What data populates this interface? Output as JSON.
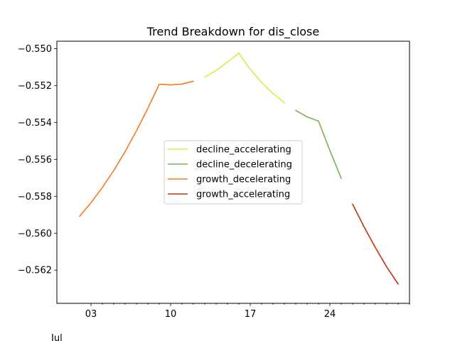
{
  "chart_data": {
    "type": "line",
    "title": "Trend Breakdown for dis_close",
    "xlabel": "",
    "ylabel": "",
    "x_offset_label": "Jul",
    "x_domain_days": [
      0,
      31
    ],
    "x_tick_labels": [
      {
        "day": 3,
        "label": "03"
      },
      {
        "day": 10,
        "label": "10"
      },
      {
        "day": 17,
        "label": "17"
      },
      {
        "day": 24,
        "label": "24"
      }
    ],
    "x_minor_ticks": [
      4,
      5,
      6,
      7,
      8,
      9,
      11,
      12,
      13,
      14,
      15,
      16,
      18,
      19,
      20,
      21,
      22,
      23,
      25,
      26,
      27,
      28,
      29,
      30,
      31
    ],
    "ylim": [
      -0.5638,
      -0.5496
    ],
    "y_ticks": [
      {
        "value": -0.55,
        "label": "−0.550"
      },
      {
        "value": -0.552,
        "label": "−0.552"
      },
      {
        "value": -0.554,
        "label": "−0.554"
      },
      {
        "value": -0.556,
        "label": "−0.556"
      },
      {
        "value": -0.558,
        "label": "−0.558"
      },
      {
        "value": -0.56,
        "label": "−0.560"
      },
      {
        "value": -0.562,
        "label": "−0.562"
      }
    ],
    "grid": false,
    "legend_position": "center",
    "series": [
      {
        "name": "decline_accelerating",
        "color": "#d4ed4a",
        "segments": [
          [
            [
              13,
              -0.55155
            ],
            [
              14,
              -0.55118
            ],
            [
              15,
              -0.55073
            ],
            [
              16,
              -0.55025
            ]
          ],
          [
            [
              16,
              -0.55025
            ],
            [
              17,
              -0.55112
            ],
            [
              18,
              -0.55183
            ],
            [
              19,
              -0.55243
            ],
            [
              20,
              -0.55293
            ]
          ]
        ]
      },
      {
        "name": "decline_decelerating",
        "color": "#7fae55",
        "segments": [
          [
            [
              21,
              -0.55335
            ],
            [
              22,
              -0.5537
            ],
            [
              23,
              -0.55393
            ],
            [
              24,
              -0.55552
            ],
            [
              25,
              -0.55703
            ]
          ]
        ]
      },
      {
        "name": "growth_decelerating",
        "color": "#f47b20",
        "segments": [
          [
            [
              2,
              -0.55908
            ],
            [
              3,
              -0.55835
            ],
            [
              4,
              -0.55752
            ],
            [
              5,
              -0.5566
            ],
            [
              6,
              -0.55558
            ],
            [
              7,
              -0.55445
            ],
            [
              8,
              -0.55323
            ],
            [
              9,
              -0.55193
            ],
            [
              10,
              -0.55197
            ],
            [
              11,
              -0.55192
            ],
            [
              12,
              -0.55177
            ]
          ]
        ]
      },
      {
        "name": "growth_accelerating",
        "color": "#c0320a",
        "segments": [
          [
            [
              26,
              -0.55843
            ],
            [
              27,
              -0.55965
            ],
            [
              28,
              -0.56078
            ],
            [
              29,
              -0.56183
            ],
            [
              30,
              -0.56275
            ]
          ]
        ]
      }
    ]
  }
}
